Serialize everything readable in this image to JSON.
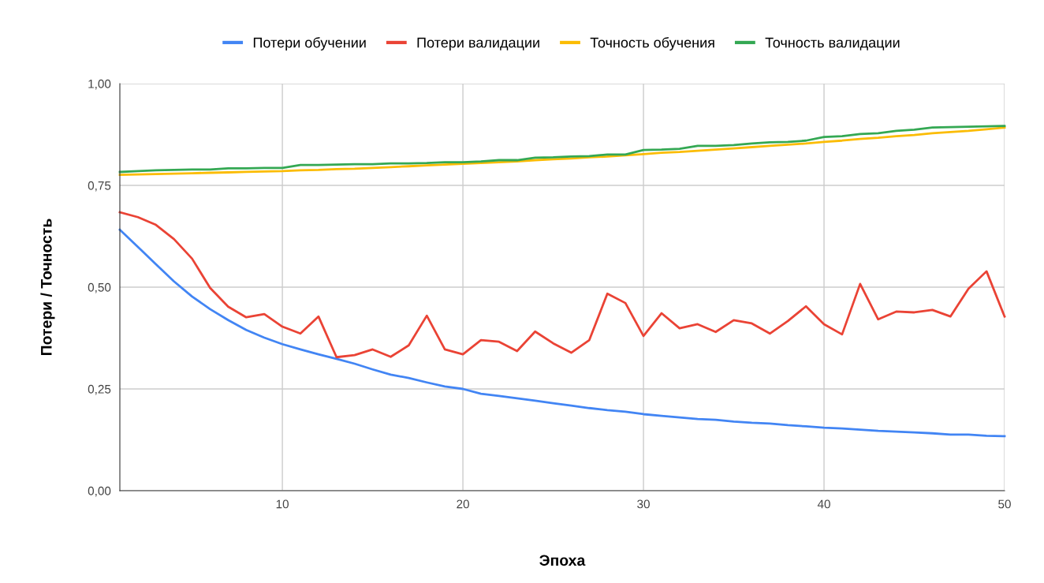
{
  "chart_data": {
    "type": "line",
    "xlabel": "Эпоха",
    "ylabel": "Потери / Точность",
    "x": [
      1,
      2,
      3,
      4,
      5,
      6,
      7,
      8,
      9,
      10,
      11,
      12,
      13,
      14,
      15,
      16,
      17,
      18,
      19,
      20,
      21,
      22,
      23,
      24,
      25,
      26,
      27,
      28,
      29,
      30,
      31,
      32,
      33,
      34,
      35,
      36,
      37,
      38,
      39,
      40,
      41,
      42,
      43,
      44,
      45,
      46,
      47,
      48,
      49,
      50
    ],
    "series": [
      {
        "name": "Потери обучении",
        "color": "#4285f4",
        "values": [
          0.641,
          0.599,
          0.556,
          0.514,
          0.477,
          0.446,
          0.419,
          0.395,
          0.376,
          0.36,
          0.347,
          0.335,
          0.324,
          0.312,
          0.298,
          0.285,
          0.277,
          0.266,
          0.256,
          0.25,
          0.238,
          0.233,
          0.227,
          0.221,
          0.215,
          0.209,
          0.203,
          0.198,
          0.194,
          0.188,
          0.184,
          0.18,
          0.176,
          0.174,
          0.17,
          0.167,
          0.165,
          0.161,
          0.158,
          0.155,
          0.153,
          0.15,
          0.147,
          0.145,
          0.143,
          0.141,
          0.138,
          0.138,
          0.135,
          0.134
        ]
      },
      {
        "name": "Потери валидации",
        "color": "#ea4335",
        "values": [
          0.684,
          0.672,
          0.653,
          0.618,
          0.57,
          0.498,
          0.452,
          0.426,
          0.434,
          0.403,
          0.386,
          0.428,
          0.328,
          0.333,
          0.347,
          0.329,
          0.357,
          0.43,
          0.347,
          0.335,
          0.37,
          0.366,
          0.343,
          0.391,
          0.362,
          0.339,
          0.37,
          0.484,
          0.461,
          0.38,
          0.436,
          0.399,
          0.409,
          0.39,
          0.419,
          0.411,
          0.386,
          0.417,
          0.453,
          0.409,
          0.384,
          0.508,
          0.421,
          0.44,
          0.438,
          0.444,
          0.428,
          0.496,
          0.539,
          0.428
        ]
      },
      {
        "name": "Точность обучения",
        "color": "#fbbc04",
        "values": [
          0.776,
          0.777,
          0.778,
          0.779,
          0.78,
          0.781,
          0.782,
          0.783,
          0.784,
          0.785,
          0.787,
          0.788,
          0.79,
          0.791,
          0.793,
          0.795,
          0.797,
          0.799,
          0.801,
          0.803,
          0.805,
          0.807,
          0.809,
          0.812,
          0.814,
          0.816,
          0.819,
          0.821,
          0.824,
          0.827,
          0.83,
          0.832,
          0.835,
          0.838,
          0.841,
          0.844,
          0.847,
          0.85,
          0.853,
          0.857,
          0.86,
          0.864,
          0.867,
          0.871,
          0.874,
          0.878,
          0.881,
          0.884,
          0.888,
          0.892
        ]
      },
      {
        "name": "Точность валидации",
        "color": "#34a853",
        "values": [
          0.783,
          0.785,
          0.787,
          0.788,
          0.789,
          0.789,
          0.792,
          0.792,
          0.793,
          0.793,
          0.8,
          0.8,
          0.801,
          0.802,
          0.802,
          0.804,
          0.804,
          0.805,
          0.807,
          0.807,
          0.809,
          0.812,
          0.812,
          0.818,
          0.819,
          0.821,
          0.822,
          0.826,
          0.826,
          0.837,
          0.838,
          0.84,
          0.847,
          0.847,
          0.849,
          0.853,
          0.856,
          0.857,
          0.86,
          0.869,
          0.871,
          0.876,
          0.878,
          0.884,
          0.887,
          0.892,
          0.893,
          0.894,
          0.895,
          0.896
        ]
      }
    ],
    "xlim": [
      1,
      50
    ],
    "xticks": [
      10,
      20,
      30,
      40,
      50
    ],
    "ylim": [
      0,
      1
    ],
    "yticks": [
      {
        "value": 0,
        "label": "0,00"
      },
      {
        "value": 0.25,
        "label": "0,25"
      },
      {
        "value": 0.5,
        "label": "0,50"
      },
      {
        "value": 0.75,
        "label": "0,75"
      },
      {
        "value": 1,
        "label": "1,00"
      }
    ],
    "grid": true,
    "legend": "top"
  }
}
